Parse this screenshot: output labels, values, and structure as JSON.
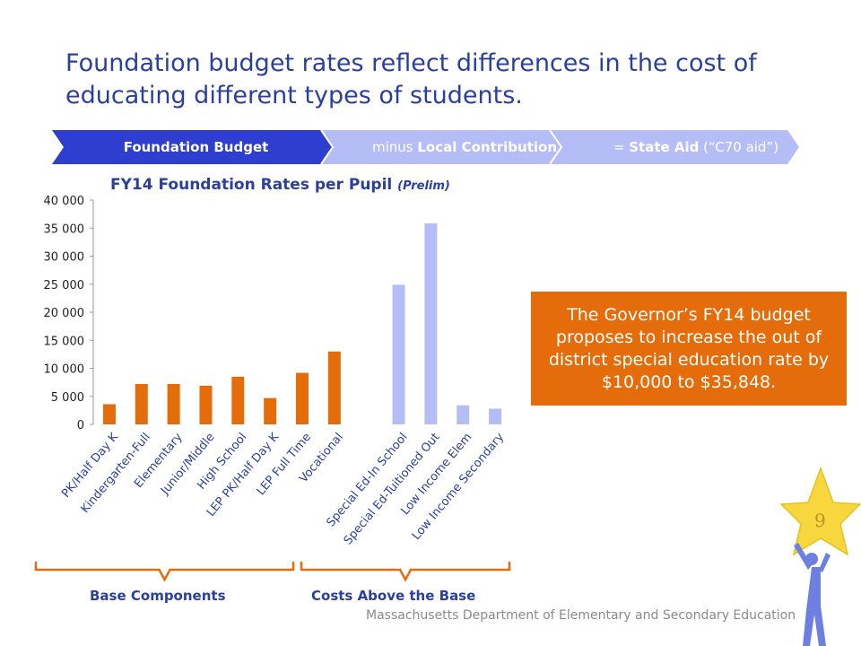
{
  "slide": {
    "title": "Foundation budget rates reflect differences in the cost of educating different types of students.",
    "page_number": "9",
    "footer": "Massachusetts Department of Elementary and Secondary Education"
  },
  "banner": {
    "step1": "Foundation Budget",
    "step2_prefix": "minus ",
    "step2_bold": "Local Contribution",
    "step3_prefix": "= ",
    "step3_bold": "State Aid",
    "step3_suffix": " (“C70 aid”)"
  },
  "callout": {
    "text": "The Governor’s FY14 budget proposes to increase the out of district special education rate by $10,000 to $35,848."
  },
  "groups": {
    "left": "Base Components",
    "right": "Costs Above the Base"
  },
  "colors": {
    "title_blue": "#2a3f9e",
    "base_bar": "#e46c0a",
    "above_base_bar": "#b4bdf5",
    "banner_dark": "#2e3fd0",
    "banner_light": "#b4bdf5"
  },
  "chart_data": {
    "type": "bar",
    "title": "FY14 Foundation Rates per Pupil",
    "title_note": "(Prelim)",
    "categories": [
      "PK/Half Day K",
      "Kindergarten-Full",
      "Elementary",
      "Junior/Middle",
      "High School",
      "LEP PK/Half Day K",
      "LEP Full Time",
      "Vocational",
      "",
      "Special Ed-In School",
      "Special Ed-Tuitioned Out",
      "Low Income Elem",
      "Low Income Secondary"
    ],
    "series": [
      {
        "values": [
          3600,
          7200,
          7200,
          6900,
          8500,
          4700,
          9200,
          13000,
          null,
          24900,
          35848,
          3400,
          2800
        ]
      }
    ],
    "bar_groups": [
      "base",
      "base",
      "base",
      "base",
      "base",
      "base",
      "base",
      "base",
      "gap",
      "above",
      "above",
      "above",
      "above"
    ],
    "yticks": [
      "0",
      "5 000",
      "10 000",
      "15 000",
      "20 000",
      "25 000",
      "30 000",
      "35 000",
      "40 000"
    ],
    "ylim": [
      0,
      40000
    ],
    "grid": false,
    "legend": "none"
  }
}
